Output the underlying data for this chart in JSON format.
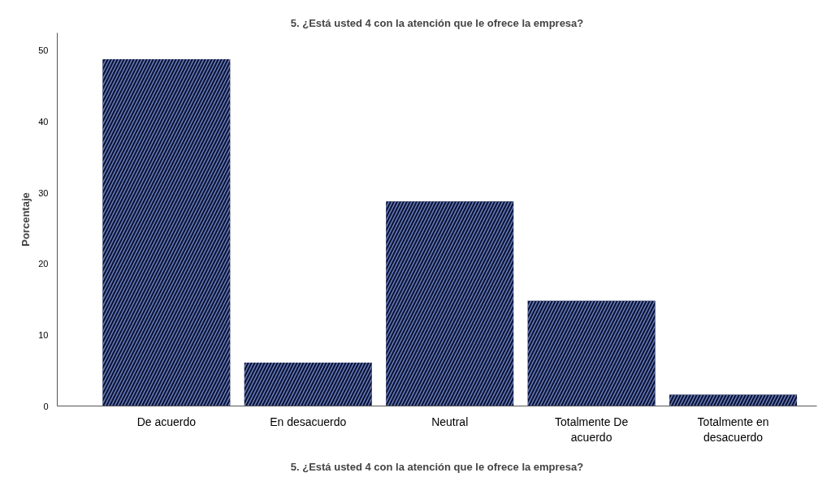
{
  "chart_data": {
    "type": "bar",
    "title": "5. ¿Está usted 4 con la atención que le ofrece la empresa?",
    "xlabel": "5. ¿Está usted 4 con la atención que le ofrece la empresa?",
    "ylabel": "Porcentaje",
    "categories": [
      "De acuerdo",
      "En desacuerdo",
      "Neutral",
      "Totalmente De acuerdo",
      "Totalmente en desacuerdo"
    ],
    "values": [
      48.8,
      6.1,
      28.8,
      14.8,
      1.6
    ],
    "color": "#0b1233",
    "ylim": [
      0,
      52.5
    ],
    "yticks": [
      0,
      10,
      20,
      30,
      40,
      50
    ],
    "grid": false
  }
}
